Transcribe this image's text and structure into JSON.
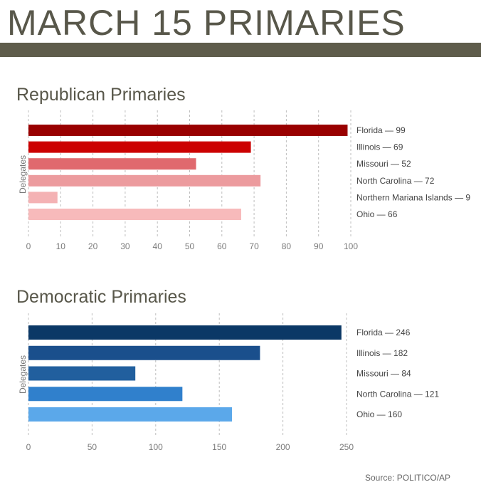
{
  "page": {
    "title": "MARCH 15 PRIMARIES",
    "source": "Source: POLITICO/AP"
  },
  "chart_data": [
    {
      "type": "bar",
      "orientation": "horizontal",
      "title": "Republican Primaries",
      "ylabel": "Delegates",
      "xlim": [
        0,
        100
      ],
      "xticks": [
        0,
        10,
        20,
        30,
        40,
        50,
        60,
        70,
        80,
        90,
        100
      ],
      "grid": true,
      "categories": [
        "Florida",
        "Illinois",
        "Missouri",
        "North Carolina",
        "Northern Mariana Islands",
        "Ohio"
      ],
      "values": [
        99,
        69,
        52,
        72,
        9,
        66
      ],
      "labels": [
        "Florida — 99",
        "Illinois — 69",
        "Missouri — 52",
        "North Carolina — 72",
        "Northern Mariana Islands — 9",
        "Ohio — 66"
      ],
      "colors": [
        "#990000",
        "#cc0000",
        "#e0696e",
        "#ec9b9e",
        "#f4b2b4",
        "#f7babb"
      ]
    },
    {
      "type": "bar",
      "orientation": "horizontal",
      "title": "Democratic Primaries",
      "ylabel": "Delegates",
      "xlim": [
        0,
        250
      ],
      "xticks": [
        0,
        50,
        100,
        150,
        200,
        250
      ],
      "grid": true,
      "categories": [
        "Florida",
        "Illinois",
        "Missouri",
        "North Carolina",
        "Ohio"
      ],
      "values": [
        246,
        182,
        84,
        121,
        160
      ],
      "labels": [
        "Florida — 246",
        "Illinois — 182",
        "Missouri — 84",
        "North Carolina — 121",
        "Ohio — 160"
      ],
      "colors": [
        "#0b3866",
        "#1a4f8c",
        "#215f9e",
        "#3080cc",
        "#5ba8ea"
      ]
    }
  ]
}
